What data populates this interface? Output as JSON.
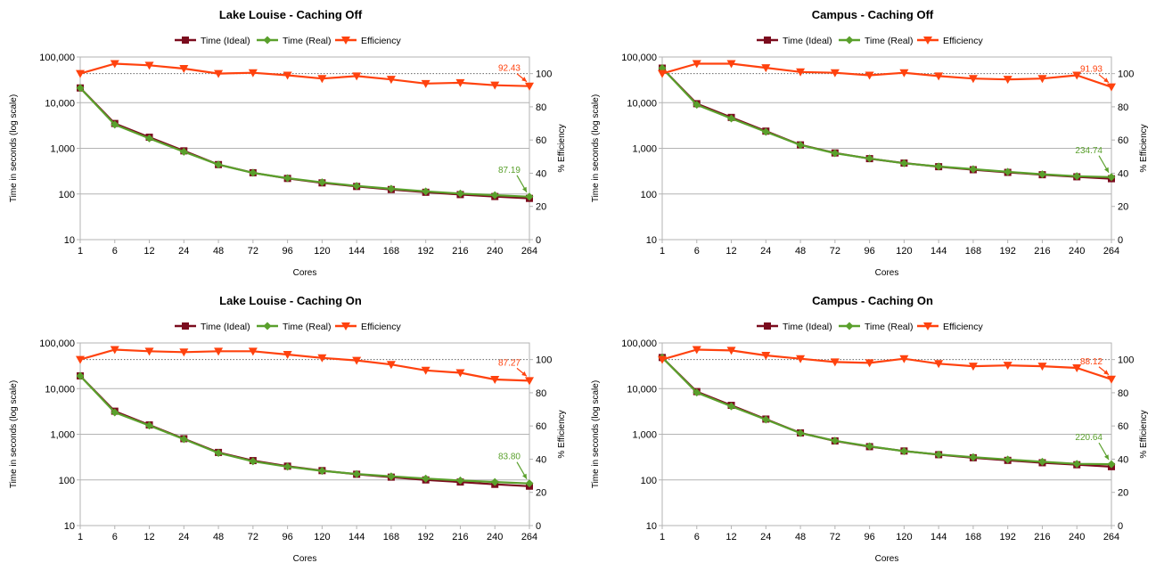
{
  "chart_data": [
    {
      "type": "line",
      "title": "Lake Louise - Caching Off",
      "xlabel": "Cores",
      "ylabel": "Time in seconds (log scale)",
      "y2label": "% Efficiency",
      "y_scale": "log",
      "ylim": [
        10,
        100000
      ],
      "y2lim": [
        0,
        110
      ],
      "categories": [
        "1",
        "6",
        "12",
        "24",
        "48",
        "72",
        "96",
        "120",
        "144",
        "168",
        "192",
        "216",
        "240",
        "264"
      ],
      "y_ticks": [
        "10",
        "100",
        "1,000",
        "10,000",
        "100,000"
      ],
      "y2_ticks": [
        "0",
        "20",
        "40",
        "60",
        "80",
        "100"
      ],
      "reference_line_y2": 100,
      "legend_position": "top",
      "series": [
        {
          "name": "Time (Ideal)",
          "axis": "left",
          "color": "#7b0c1e",
          "marker": "square",
          "values": [
            21000,
            3500,
            1750,
            880,
            440,
            292,
            219,
            175,
            146,
            125,
            109,
            97,
            88,
            80
          ]
        },
        {
          "name": "Time (Real)",
          "axis": "left",
          "color": "#5aa02c",
          "marker": "diamond",
          "values": [
            21000,
            3300,
            1650,
            840,
            440,
            290,
            222,
            180,
            150,
            130,
            114,
            102,
            94,
            87.19
          ]
        },
        {
          "name": "Efficiency",
          "axis": "right",
          "color": "#ff420e",
          "marker": "triangle-down",
          "values": [
            100,
            106,
            105,
            103,
            100,
            100.5,
            99,
            97,
            98.5,
            96.5,
            94,
            94.5,
            93,
            92.43
          ]
        }
      ],
      "annotations": [
        {
          "series": "Efficiency",
          "text": "92.43"
        },
        {
          "series": "Time (Real)",
          "text": "87.19"
        }
      ]
    },
    {
      "type": "line",
      "title": "Campus - Caching Off",
      "xlabel": "Cores",
      "ylabel": "Time in seconds (log scale)",
      "y2label": "% Efficiency",
      "y_scale": "log",
      "ylim": [
        10,
        100000
      ],
      "y2lim": [
        0,
        110
      ],
      "categories": [
        "1",
        "6",
        "12",
        "24",
        "48",
        "72",
        "96",
        "120",
        "144",
        "168",
        "192",
        "216",
        "240",
        "264"
      ],
      "y_ticks": [
        "10",
        "100",
        "1,000",
        "10,000",
        "100,000"
      ],
      "y2_ticks": [
        "0",
        "20",
        "40",
        "60",
        "80",
        "100"
      ],
      "reference_line_y2": 100,
      "legend_position": "top",
      "series": [
        {
          "name": "Time (Ideal)",
          "axis": "left",
          "color": "#7b0c1e",
          "marker": "square",
          "values": [
            57000,
            9500,
            4750,
            2380,
            1190,
            792,
            594,
            475,
            396,
            340,
            297,
            264,
            238,
            216
          ]
        },
        {
          "name": "Time (Real)",
          "axis": "left",
          "color": "#5aa02c",
          "marker": "diamond",
          "values": [
            57000,
            9000,
            4500,
            2300,
            1180,
            780,
            600,
            470,
            400,
            350,
            305,
            270,
            245,
            234.74
          ]
        },
        {
          "name": "Efficiency",
          "axis": "right",
          "color": "#ff420e",
          "marker": "triangle-down",
          "values": [
            100,
            106,
            106,
            103.5,
            101,
            100.5,
            99,
            100.5,
            98.5,
            97,
            96.5,
            97,
            99,
            91.93
          ]
        }
      ],
      "annotations": [
        {
          "series": "Efficiency",
          "text": "91.93"
        },
        {
          "series": "Time (Real)",
          "text": "234.74"
        }
      ]
    },
    {
      "type": "line",
      "title": "Lake Louise - Caching On",
      "xlabel": "Cores",
      "ylabel": "Time in seconds (log scale)",
      "y2label": "% Efficiency",
      "y_scale": "log",
      "ylim": [
        10,
        100000
      ],
      "y2lim": [
        0,
        110
      ],
      "categories": [
        "1",
        "6",
        "12",
        "24",
        "48",
        "72",
        "96",
        "120",
        "144",
        "168",
        "192",
        "216",
        "240",
        "264"
      ],
      "y_ticks": [
        "10",
        "100",
        "1,000",
        "10,000",
        "100,000"
      ],
      "y2_ticks": [
        "0",
        "20",
        "40",
        "60",
        "80",
        "100"
      ],
      "reference_line_y2": 100,
      "legend_position": "top",
      "series": [
        {
          "name": "Time (Ideal)",
          "axis": "left",
          "color": "#7b0c1e",
          "marker": "square",
          "values": [
            19000,
            3200,
            1600,
            800,
            400,
            265,
            200,
            160,
            133,
            115,
            100,
            90,
            80,
            73
          ]
        },
        {
          "name": "Time (Real)",
          "axis": "left",
          "color": "#5aa02c",
          "marker": "diamond",
          "values": [
            19000,
            3000,
            1550,
            780,
            390,
            255,
            195,
            158,
            135,
            120,
            107,
            97,
            90,
            83.8
          ]
        },
        {
          "name": "Efficiency",
          "axis": "right",
          "color": "#ff420e",
          "marker": "triangle-down",
          "values": [
            100,
            106,
            105,
            104.5,
            105,
            105,
            103,
            101,
            99.5,
            97,
            93.5,
            92,
            88,
            87.27
          ]
        }
      ],
      "annotations": [
        {
          "series": "Efficiency",
          "text": "87.27"
        },
        {
          "series": "Time (Real)",
          "text": "83.80"
        }
      ]
    },
    {
      "type": "line",
      "title": "Campus - Caching On",
      "xlabel": "Cores",
      "ylabel": "Time in seconds (log scale)",
      "y2label": "% Efficiency",
      "y_scale": "log",
      "ylim": [
        10,
        100000
      ],
      "y2lim": [
        0,
        110
      ],
      "categories": [
        "1",
        "6",
        "12",
        "24",
        "48",
        "72",
        "96",
        "120",
        "144",
        "168",
        "192",
        "216",
        "240",
        "264"
      ],
      "y_ticks": [
        "10",
        "100",
        "1,000",
        "10,000",
        "100,000"
      ],
      "y2_ticks": [
        "0",
        "20",
        "40",
        "60",
        "80",
        "100"
      ],
      "reference_line_y2": 100,
      "legend_position": "top",
      "series": [
        {
          "name": "Time (Ideal)",
          "axis": "left",
          "color": "#7b0c1e",
          "marker": "square",
          "values": [
            48000,
            8600,
            4300,
            2150,
            1070,
            715,
            535,
            430,
            357,
            306,
            268,
            238,
            215,
            195
          ]
        },
        {
          "name": "Time (Real)",
          "axis": "left",
          "color": "#5aa02c",
          "marker": "diamond",
          "values": [
            48000,
            8200,
            4100,
            2100,
            1060,
            720,
            545,
            425,
            360,
            315,
            280,
            250,
            225,
            220.64
          ]
        },
        {
          "name": "Efficiency",
          "axis": "right",
          "color": "#ff420e",
          "marker": "triangle-down",
          "values": [
            100,
            106,
            105.5,
            102.5,
            100.5,
            98.5,
            98,
            100.5,
            97.5,
            96,
            96.5,
            96,
            95,
            88.12
          ]
        }
      ],
      "annotations": [
        {
          "series": "Efficiency",
          "text": "88.12"
        },
        {
          "series": "Time (Real)",
          "text": "220.64"
        }
      ]
    }
  ]
}
